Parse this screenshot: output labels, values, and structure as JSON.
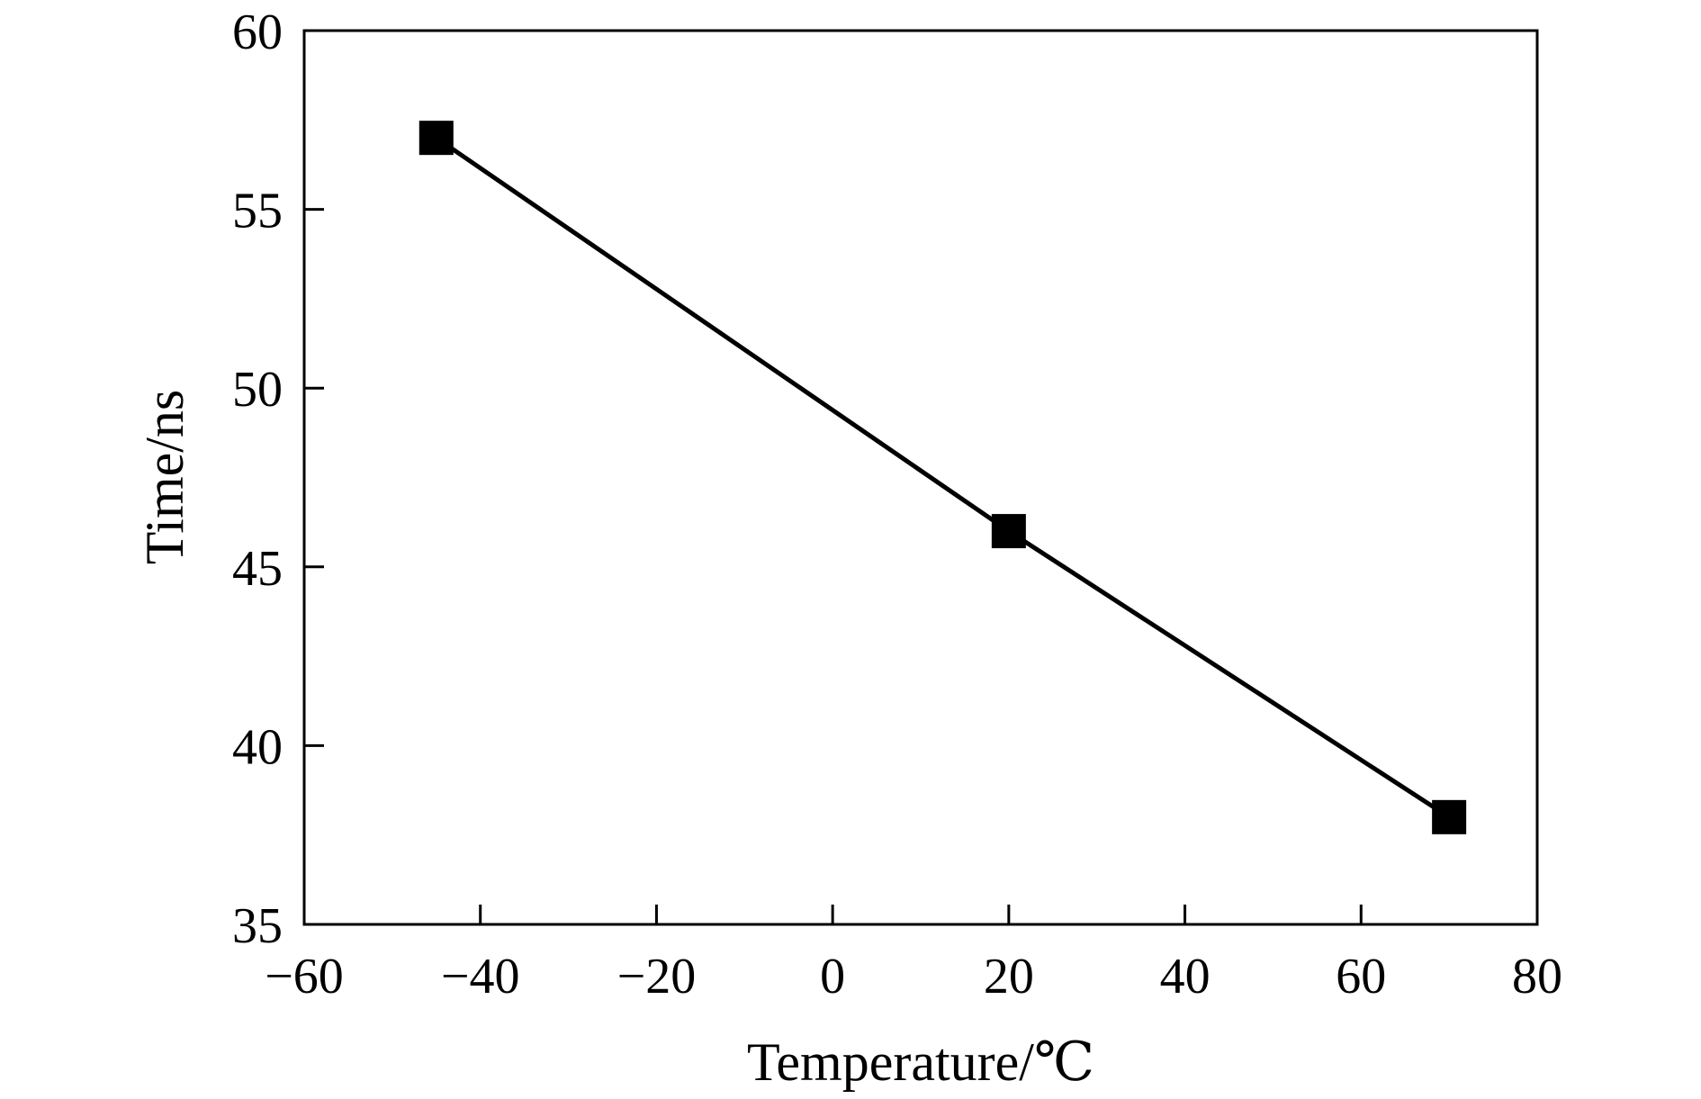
{
  "chart_data": {
    "type": "line",
    "title": "",
    "xlabel": "Temperature/℃",
    "ylabel": "Time/ns",
    "xlim": [
      -60,
      80
    ],
    "ylim": [
      35,
      60
    ],
    "xticks": [
      -60,
      -40,
      -20,
      0,
      20,
      40,
      60,
      80
    ],
    "yticks": [
      35,
      40,
      45,
      50,
      55,
      60
    ],
    "xtick_labels": [
      "−60",
      "−40",
      "−20",
      "0",
      "20",
      "40",
      "60",
      "80"
    ],
    "ytick_labels": [
      "35",
      "40",
      "45",
      "50",
      "55",
      "60"
    ],
    "grid": false,
    "series": [
      {
        "x": [
          -45,
          20,
          70
        ],
        "y": [
          57,
          46,
          38
        ],
        "marker": "square",
        "color": "#000000"
      }
    ]
  }
}
